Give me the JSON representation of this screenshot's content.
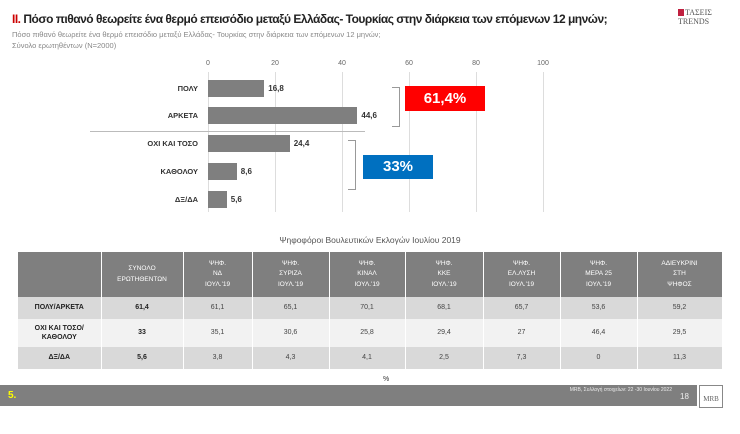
{
  "header": {
    "number": "II.",
    "title": "Πόσο πιθανό θεωρείτε ένα θερμό επεισόδιο μεταξύ Ελλάδας- Τουρκίας στην διάρκεια των επόμενων 12 μηνών;",
    "subtitle": "Πόσο πιθανό θεωρείτε ένα θερμό επεισόδιο μεταξύ Ελλάδας- Τουρκίας στην διάρκεια των επόμενων 12 μηνών;",
    "base": "Σύνολο ερωτηθέντων (N=2000)",
    "logo": "ΤΑΣΕΙΣ TRENDS"
  },
  "chart_data": {
    "type": "bar",
    "orientation": "horizontal",
    "categories": [
      "ΠΟΛΥ",
      "ΑΡΚΕΤΑ",
      "ΟΧΙ ΚΑΙ ΤΟΣΟ",
      "ΚΑΘΟΛΟΥ",
      "ΔΞ/ΔΑ"
    ],
    "values": [
      16.8,
      44.6,
      24.4,
      8.6,
      5.6
    ],
    "value_labels": [
      "16,8",
      "44,6",
      "24,4",
      "8,6",
      "5,6"
    ],
    "xlim": [
      0,
      100
    ],
    "ticks": [
      "0",
      "20",
      "40",
      "60",
      "80",
      "100"
    ],
    "bar_color": "#7f7f7f",
    "annotations": [
      {
        "text": "61,4%",
        "color": "#ff0000",
        "groups": [
          "ΠΟΛΥ",
          "ΑΡΚΕΤΑ"
        ]
      },
      {
        "text": "33%",
        "color": "#0070c0",
        "groups": [
          "ΟΧΙ ΚΑΙ ΤΟΣΟ",
          "ΚΑΘΟΛΟΥ"
        ]
      }
    ]
  },
  "table": {
    "title": "Ψηφοφόροι Βουλευτικών Εκλογών Ιουλίου 2019",
    "headers": [
      "",
      "ΣΥΝΟΛΟ\nΕΡΩΤΗΘΕΝΤΩΝ",
      "ΨΗΦ.\nΝΔ\nΙΟΥΛ.'19",
      "ΨΗΦ.\nΣΥΡΙΖΑ\nΙΟΥΛ.'19",
      "ΨΗΦ.\nΚΙΝΑΛ\nΙΟΥΛ.'19",
      "ΨΗΦ.\nΚΚΕ\nΙΟΥΛ.'19",
      "ΨΗΦ.\nΕΛ.ΛΥΣΗ\nΙΟΥΛ.'19",
      "ΨΗΦ.\nΜΕΡΑ 25\nΙΟΥΛ.'19",
      "ΑΔΙΕΥΚΡΙΝΙ\nΣΤΗ\nΨΗΦΟΣ"
    ],
    "rows": [
      [
        "ΠΟΛΥ/ΑΡΚΕΤΑ",
        "61,4",
        "61,1",
        "65,1",
        "70,1",
        "68,1",
        "65,7",
        "53,6",
        "59,2"
      ],
      [
        "ΟΧΙ ΚΑΙ ΤΟΣΟ/ΚΑΘΟΛΟΥ",
        "33",
        "35,1",
        "30,6",
        "25,8",
        "29,4",
        "27",
        "46,4",
        "29,5"
      ],
      [
        "ΔΞ/ΔΑ",
        "5,6",
        "3,8",
        "4,3",
        "4,1",
        "2,5",
        "7,3",
        "0",
        "11,3"
      ]
    ],
    "unit": "%"
  },
  "footer": {
    "page_label": "5.",
    "source": "MRB, Συλλογή στοιχείων: 22 -30 Ιουνίου 2022",
    "page": "18",
    "logo": "MRB"
  }
}
